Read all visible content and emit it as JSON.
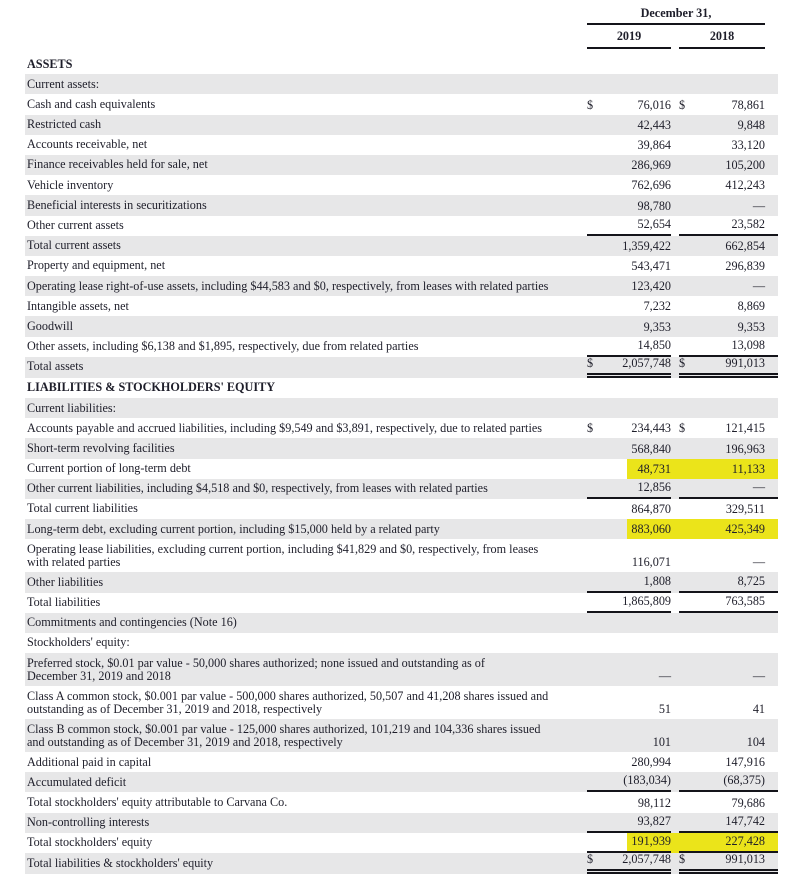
{
  "header": {
    "date_label": "December 31,",
    "columns": [
      "2019",
      "2018"
    ]
  },
  "colors": {
    "highlight": "#ebe41a",
    "row_shade": "#e7e7e8",
    "rule": "#14141a",
    "text": "#1e1e2a"
  },
  "rows": [
    {
      "label": "ASSETS",
      "bold": true
    },
    {
      "label": "Current assets:",
      "shade": true
    },
    {
      "label": "Cash and cash equivalents",
      "dollar": "$",
      "v2019": "76,016",
      "v2018": "78,861"
    },
    {
      "label": "Restricted cash",
      "v2019": "42,443",
      "v2018": "9,848",
      "shade": true
    },
    {
      "label": "Accounts receivable, net",
      "v2019": "39,864",
      "v2018": "33,120"
    },
    {
      "label": "Finance receivables held for sale, net",
      "v2019": "286,969",
      "v2018": "105,200",
      "shade": true
    },
    {
      "label": "Vehicle inventory",
      "v2019": "762,696",
      "v2018": "412,243"
    },
    {
      "label": "Beneficial interests in securitizations",
      "v2019": "98,780",
      "v2018": "—",
      "shade": true
    },
    {
      "label": "Other current assets",
      "v2019": "52,654",
      "v2018": "23,582",
      "rule": "single"
    },
    {
      "label": "Total current assets",
      "v2019": "1,359,422",
      "v2018": "662,854",
      "shade": true
    },
    {
      "label": "Property and equipment, net",
      "v2019": "543,471",
      "v2018": "296,839"
    },
    {
      "label": "Operating lease right-of-use assets, including $44,583 and $0, respectively, from leases with related parties",
      "v2019": "123,420",
      "v2018": "—",
      "shade": true
    },
    {
      "label": "Intangible assets, net",
      "v2019": "7,232",
      "v2018": "8,869"
    },
    {
      "label": "Goodwill",
      "v2019": "9,353",
      "v2018": "9,353",
      "shade": true
    },
    {
      "label": "Other assets, including $6,138 and $1,895, respectively, due from related parties",
      "v2019": "14,850",
      "v2018": "13,098",
      "rule": "single"
    },
    {
      "label": "Total assets",
      "dollar": "$",
      "v2019": "2,057,748",
      "v2018": "991,013",
      "shade": true,
      "rule": "double"
    },
    {
      "label": "LIABILITIES & STOCKHOLDERS' EQUITY",
      "bold": true
    },
    {
      "label": "Current liabilities:",
      "shade": true
    },
    {
      "label": "Accounts payable and accrued liabilities, including $9,549 and $3,891, respectively, due to related parties",
      "dollar": "$",
      "v2019": "234,443",
      "v2018": "121,415"
    },
    {
      "label": "Short-term revolving facilities",
      "v2019": "568,840",
      "v2018": "196,963",
      "shade": true
    },
    {
      "label": "Current portion of long-term debt",
      "v2019": "48,731",
      "v2018": "11,133",
      "highlight": true
    },
    {
      "label": "Other current liabilities, including $4,518 and $0, respectively, from leases with related parties",
      "v2019": "12,856",
      "v2018": "—",
      "shade": true,
      "rule": "single"
    },
    {
      "label": "Total current liabilities",
      "v2019": "864,870",
      "v2018": "329,511"
    },
    {
      "label": "Long-term debt, excluding current portion, including $15,000 held by a related party",
      "v2019": "883,060",
      "v2018": "425,349",
      "shade": true,
      "highlight": true
    },
    {
      "label": "Operating lease liabilities, excluding current portion, including $41,829 and $0, respectively, from leases\nwith related parties",
      "v2019": "116,071",
      "v2018": "—"
    },
    {
      "label": "Other liabilities",
      "v2019": "1,808",
      "v2018": "8,725",
      "shade": true,
      "rule": "single"
    },
    {
      "label": "Total liabilities",
      "v2019": "1,865,809",
      "v2018": "763,585",
      "rule": "single"
    },
    {
      "label": "Commitments and contingencies (Note 16)",
      "shade": true
    },
    {
      "label": "Stockholders' equity:"
    },
    {
      "label": "Preferred stock, $0.01 par value - 50,000 shares authorized; none issued and outstanding as of\nDecember 31, 2019 and 2018",
      "v2019": "—",
      "v2018": "—",
      "shade": true
    },
    {
      "label": "Class A common stock, $0.001 par value - 500,000 shares authorized, 50,507 and 41,208 shares issued and\noutstanding as of December 31, 2019 and 2018, respectively",
      "v2019": "51",
      "v2018": "41"
    },
    {
      "label": "Class B common stock, $0.001 par value - 125,000 shares authorized, 101,219 and 104,336 shares issued\nand outstanding as of December 31, 2019 and 2018, respectively",
      "v2019": "101",
      "v2018": "104",
      "shade": true
    },
    {
      "label": "Additional paid in capital",
      "v2019": "280,994",
      "v2018": "147,916"
    },
    {
      "label": "Accumulated deficit",
      "v2019": "(183,034)",
      "v2018": "(68,375)",
      "shade": true,
      "rule": "single"
    },
    {
      "label": "Total stockholders' equity attributable to Carvana Co.",
      "v2019": "98,112",
      "v2018": "79,686"
    },
    {
      "label": "Non-controlling interests",
      "v2019": "93,827",
      "v2018": "147,742",
      "shade": true,
      "rule": "single"
    },
    {
      "label": "Total stockholders' equity",
      "v2019": "191,939",
      "v2018": "227,428",
      "highlight": true,
      "rule": "single"
    },
    {
      "label": "Total liabilities & stockholders' equity",
      "dollar": "$",
      "v2019": "2,057,748",
      "v2018": "991,013",
      "shade": true,
      "rule": "double"
    }
  ]
}
